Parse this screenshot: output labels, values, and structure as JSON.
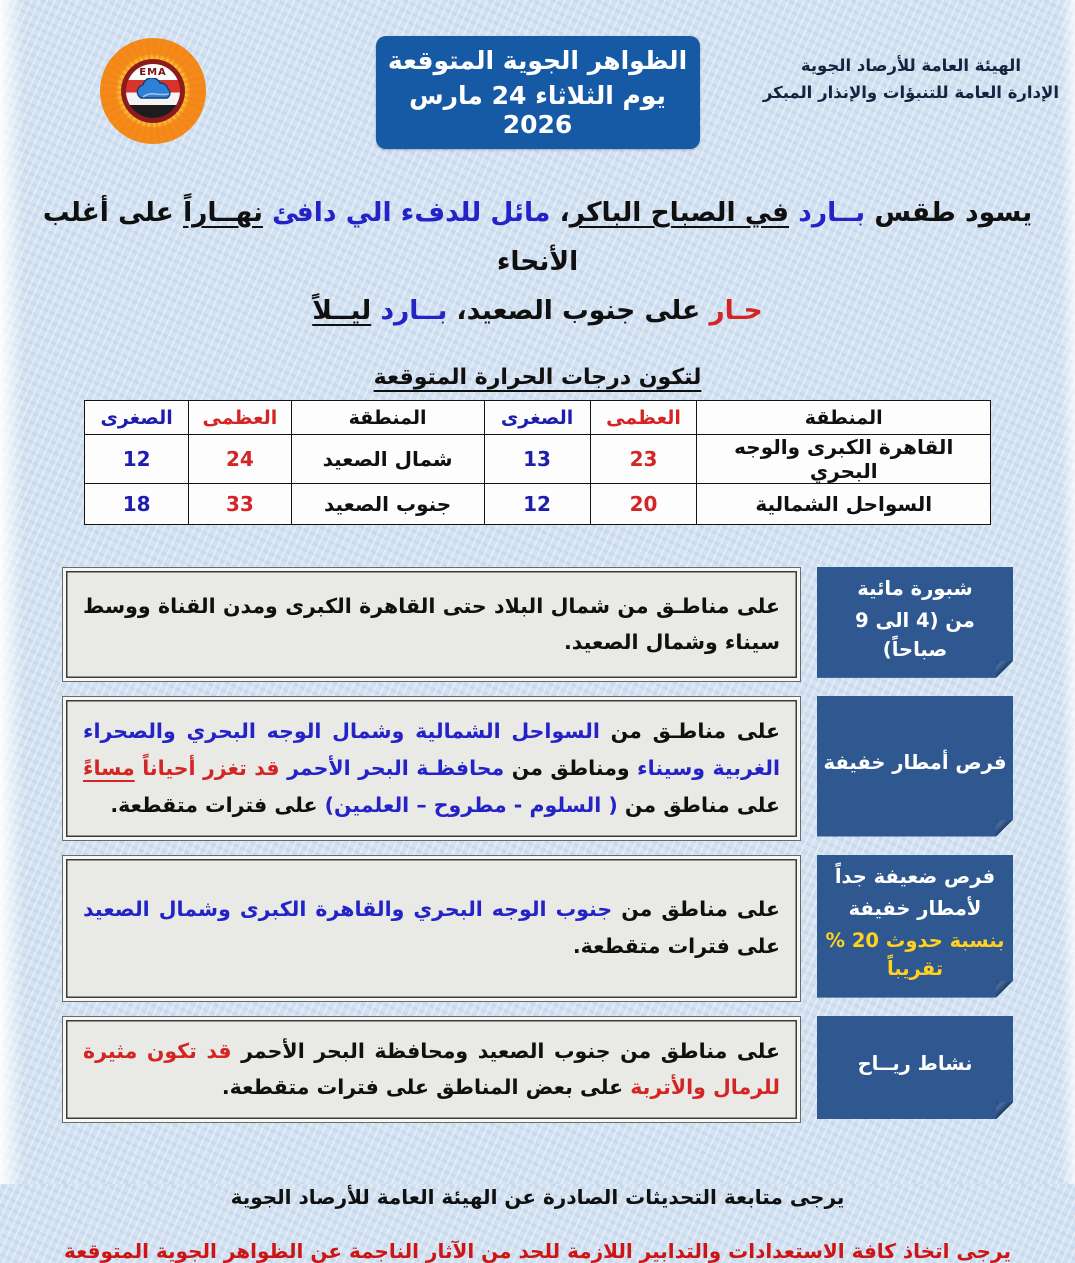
{
  "colors": {
    "page_bg": "#d3e1f1",
    "title_box_bg": "#1659a4",
    "label_box_bg": "#2f5890",
    "text_blue": "#2323c8",
    "text_red": "#d42525",
    "text_min_blue": "#1d1dae",
    "highlight_yellow": "#ffd21f"
  },
  "header": {
    "logo_text": "EMA",
    "title_box": {
      "line1": "الظواهر الجوية المتوقعة",
      "line2": "يوم الثلاثاء 24 مارس 2026"
    },
    "agency": {
      "line1": "الهيئة العامة للأرصاد الجوية",
      "line2": "الإدارة العامة للتنبؤات والإنذار المبكر"
    }
  },
  "summary": {
    "line1": [
      {
        "t": "يسود طقس ",
        "c": "black"
      },
      {
        "t": "بــارد",
        "c": "blue"
      },
      {
        "t": " ",
        "c": "black"
      },
      {
        "t": "في الصباح الباكر",
        "c": "black",
        "u": true
      },
      {
        "t": "، ",
        "c": "black"
      },
      {
        "t": "مائل للدفء الي دافئ ",
        "c": "blue"
      },
      {
        "t": "نهــاراً",
        "c": "black",
        "u": true
      },
      {
        "t": " على أغلب الأنحاء",
        "c": "black"
      }
    ],
    "line2": [
      {
        "t": "حـار",
        "c": "red"
      },
      {
        "t": " على جنوب الصعيد، ",
        "c": "black"
      },
      {
        "t": "بــارد",
        "c": "blue"
      },
      {
        "t": " ",
        "c": "black"
      },
      {
        "t": "ليــلاً",
        "c": "black",
        "u": true
      }
    ]
  },
  "table": {
    "title": "لتكون درجات الحرارة المتوقعة",
    "headers": [
      "المنطقة",
      "العظمى",
      "الصغرى",
      "المنطقة",
      "العظمى",
      "الصغرى"
    ],
    "rows": [
      {
        "cells": [
          "القاهرة الكبرى والوجه البحري",
          "23",
          "13",
          "شمال الصعيد",
          "24",
          "12"
        ]
      },
      {
        "cells": [
          "السواحل الشمالية",
          "20",
          "12",
          "جنوب الصعيد",
          "33",
          "18"
        ]
      }
    ]
  },
  "phenomena": [
    {
      "label": [
        "شبورة مائية",
        "من (4 الى 9 صباحاً)"
      ],
      "content": [
        {
          "t": "على مناطـق من شمال البلاد حتى القاهرة الكبرى ومدن القناة ووسط سيناء وشمال الصعيد.",
          "c": "black"
        }
      ]
    },
    {
      "label": [
        "فرص أمطار خفيفة"
      ],
      "content": [
        {
          "t": "على مناطـق من ",
          "c": "black"
        },
        {
          "t": "السواحل الشمالية وشمال الوجه البحري والصحراء الغربية وسيناء",
          "c": "blue"
        },
        {
          "t": " ومناطق من ",
          "c": "black"
        },
        {
          "t": "محافظـة البحر الأحمر",
          "c": "blue"
        },
        {
          "t": " ",
          "c": "black"
        },
        {
          "t": "قد تغزر أحياناً ",
          "c": "red"
        },
        {
          "t": "مساءً",
          "c": "red",
          "u": true
        },
        {
          "t": " على مناطق من ",
          "c": "black"
        },
        {
          "t": "( السلوم - مطروح – العلمين)",
          "c": "blue"
        },
        {
          "t": " على فترات متقطعة.",
          "c": "black"
        }
      ]
    },
    {
      "label": [
        "فرص ضعيفة جداً",
        "لأمطار خفيفة",
        "بنسبة حدوث 20 % تقريباً"
      ],
      "content": [
        {
          "t": "على مناطق من ",
          "c": "black"
        },
        {
          "t": "جنوب الوجه البحري والقاهرة الكبرى وشمال الصعيد",
          "c": "blue"
        },
        {
          "t": " على فترات متقطعة.",
          "c": "black"
        }
      ]
    },
    {
      "label": [
        "نشاط ريــاح"
      ],
      "content": [
        {
          "t": "على مناطق من جنوب الصعيد ومحافظة البحر الأحمر ",
          "c": "black"
        },
        {
          "t": "قد تكون مثيرة للرمال والأتربة",
          "c": "red"
        },
        {
          "t": " على بعض المناطق على فترات متقطعة.",
          "c": "black"
        }
      ]
    }
  ],
  "footer": {
    "note": "يرجى متابعة التحديثات الصادرة عن الهيئة العامة للأرصاد الجوية",
    "warning": "يرجى اتخاذ كافة الاستعدادات والتدابير اللازمة للحد من الآثار الناجمة عن الظواهر الجوية المتوقعة"
  }
}
